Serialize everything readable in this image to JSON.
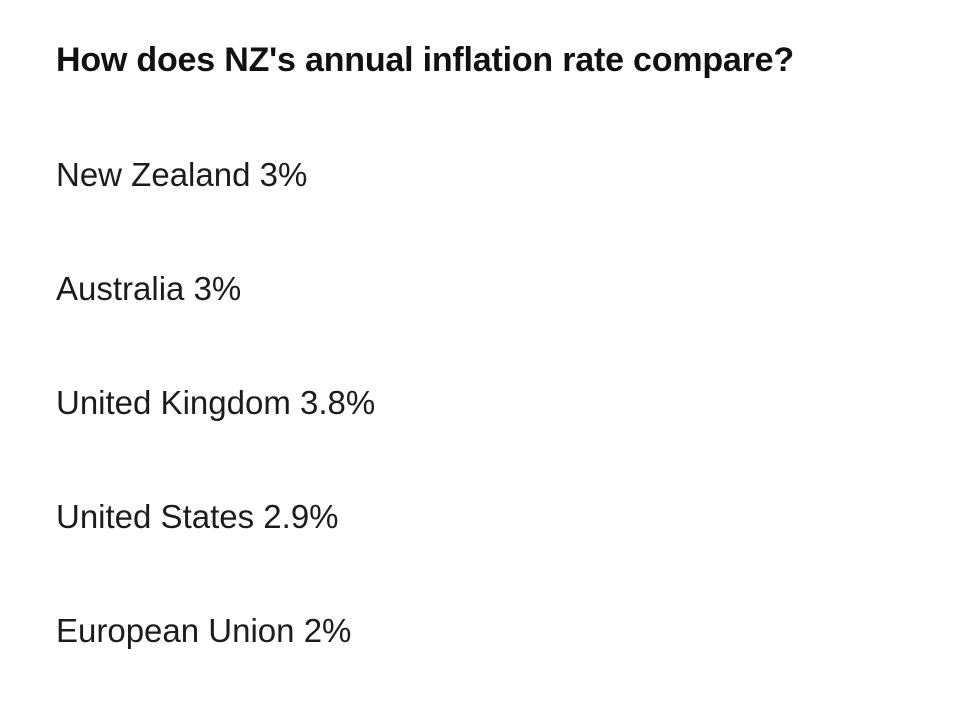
{
  "article": {
    "heading": "How does NZ's annual inflation rate compare?",
    "items": [
      {
        "country": "New Zealand",
        "rate": "3%"
      },
      {
        "country": "Australia",
        "rate": "3%"
      },
      {
        "country": "United Kingdom",
        "rate": "3.8%"
      },
      {
        "country": "United States",
        "rate": "2.9%"
      },
      {
        "country": "European Union",
        "rate": "2%"
      }
    ]
  },
  "colors": {
    "text": "#1c1c1c",
    "heading": "#111111",
    "background": "#ffffff"
  }
}
